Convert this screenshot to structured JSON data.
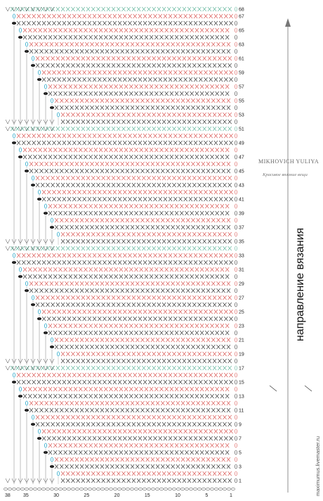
{
  "chart_data": {
    "type": "diagram",
    "description_type": "crochet-chart",
    "row_numbers": [
      "68",
      "67",
      "65",
      "63",
      "61",
      "59",
      "57",
      "55",
      "53",
      "51",
      "49",
      "47",
      "45",
      "43",
      "41",
      "39",
      "37",
      "35",
      "33",
      "31",
      "29",
      "27",
      "25",
      "23",
      "21",
      "19",
      "17",
      "15",
      "13",
      "11",
      "9",
      "7",
      "5",
      "3",
      "1"
    ],
    "column_numbers": [
      "38",
      "35",
      "30",
      "25",
      "20",
      "15",
      "10",
      "5",
      "1"
    ],
    "direction_label": "направление вязания",
    "watermark": "maximumus.livemaster.ru",
    "brand_name": "MIKHOVICH YULIYA",
    "brand_tagline": "Красивое вязание вещи"
  },
  "colors": {
    "green": "#5fb39a",
    "red": "#d9534f",
    "dark": "#333333",
    "cyan": "#2aa7c9",
    "black": "#111111",
    "arrow": "#666666"
  }
}
